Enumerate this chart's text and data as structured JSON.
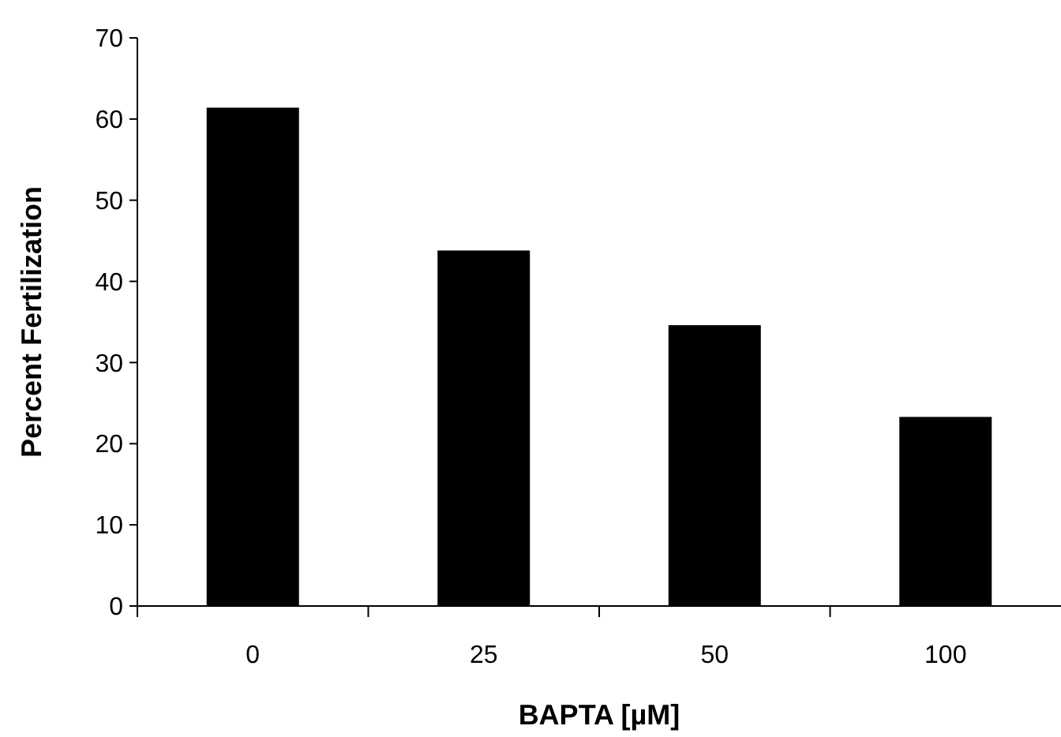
{
  "chart_data": {
    "type": "bar",
    "xlabel": "BAPTA [µM]",
    "ylabel": "Percent Fertilization",
    "categories": [
      "0",
      "25",
      "50",
      "100"
    ],
    "values": [
      61.4,
      43.8,
      34.6,
      23.3
    ],
    "color": "#000000",
    "ylim": [
      0,
      70
    ],
    "yticks": [
      0,
      10,
      20,
      30,
      40,
      50,
      60,
      70
    ],
    "grid": false
  }
}
